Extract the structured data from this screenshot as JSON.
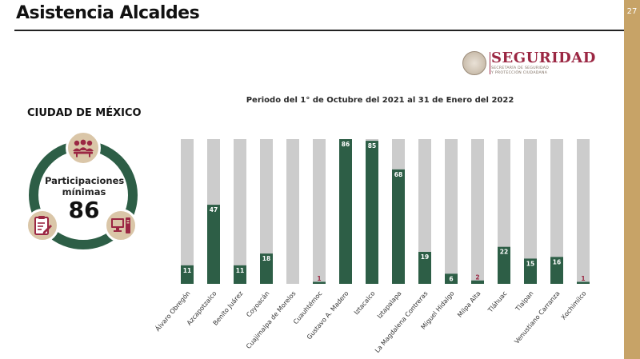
{
  "slide": {
    "title": "Asistencia Alcaldes",
    "page_number": "27"
  },
  "brand": {
    "name": "SEGURIDAD",
    "subtitle_line1": "SECRETARÍA DE SEGURIDAD",
    "subtitle_line2": "Y PROTECCIÓN CIUDADANA"
  },
  "summary": {
    "city": "CIUDAD DE MÉXICO",
    "label": "Participaciones mínimas",
    "value": "86",
    "icons": [
      "people-meeting-icon",
      "clipboard-icon",
      "computer-icon"
    ]
  },
  "colors": {
    "bar_value": "#2d5e46",
    "bar_track": "#cccccc",
    "accent": "#c7a367",
    "brand": "#9b2743",
    "badge": "#dac6a8",
    "small_value_label": "#9b2743"
  },
  "chart_data": {
    "type": "bar",
    "title": "Periodo del 1° de Octubre del 2021 al 31 de Enero del 2022",
    "categories": [
      "Álvaro Obregón",
      "Azcapotzalco",
      "Benito Juárez",
      "Coyoacán",
      "Cuajimalpa de Morelos",
      "Cuauhtémoc",
      "Gustavo A. Madero",
      "Iztacalco",
      "Iztapalapa",
      "La Magdalena Contreras",
      "Miguel Hidalgo",
      "Milpa Alta",
      "Tláhuac",
      "Tlalpan",
      "Venustiano Carranza",
      "Xochimilco"
    ],
    "values": [
      11,
      47,
      11,
      18,
      0,
      1,
      86,
      85,
      68,
      19,
      6,
      2,
      22,
      15,
      16,
      1
    ],
    "data_labels": [
      "11",
      "47",
      "11",
      "18",
      "",
      "1",
      "86",
      "85",
      "68",
      "19",
      "6",
      "2",
      "22",
      "15",
      "16",
      "1"
    ],
    "ylim": [
      0,
      86
    ],
    "xlabel": "",
    "ylabel": "",
    "grid": false,
    "legend": "none"
  }
}
